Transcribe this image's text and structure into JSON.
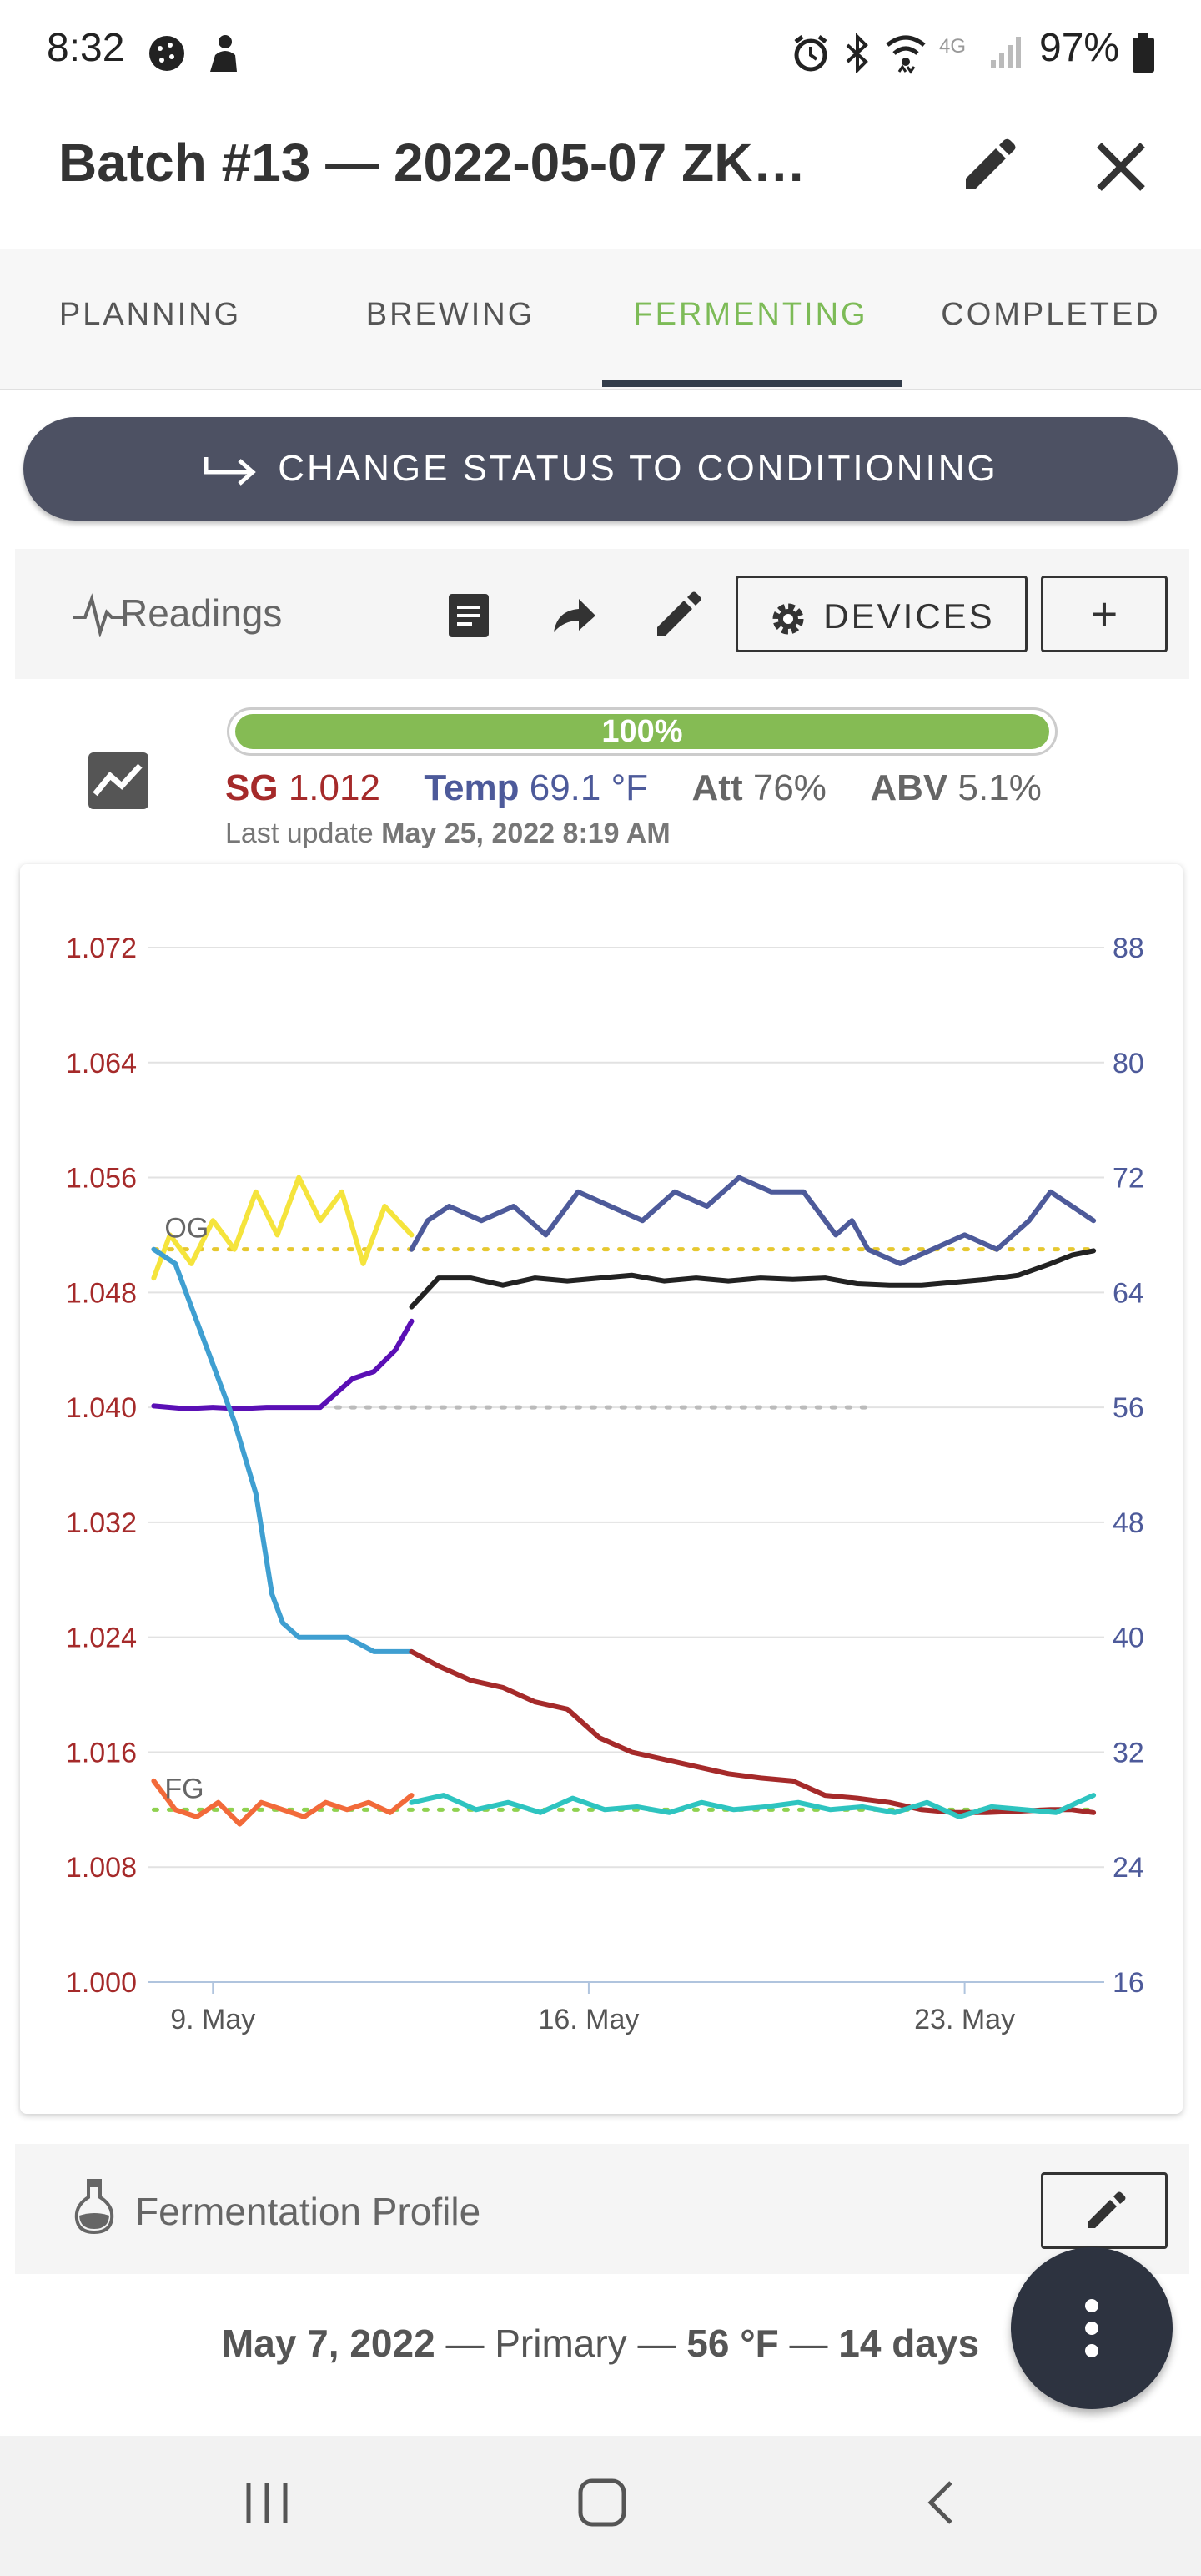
{
  "status_bar": {
    "time": "8:32",
    "battery": "97%",
    "network": "4G"
  },
  "header": {
    "title": "Batch #13 — 2022-05-07 ZK…",
    "edit_icon": "pencil-icon",
    "close_icon": "close-icon"
  },
  "tabs": [
    {
      "label": "PLANNING",
      "active": false
    },
    {
      "label": "BREWING",
      "active": false
    },
    {
      "label": "FERMENTING",
      "active": true
    },
    {
      "label": "COMPLETED",
      "active": false
    }
  ],
  "status_button": {
    "label": "CHANGE STATUS TO CONDITIONING",
    "icon": "arrow-right-icon"
  },
  "readings": {
    "label": "Readings",
    "devices_label": "DEVICES",
    "add_label": "+"
  },
  "progress": {
    "percent": 100,
    "label": "100%"
  },
  "stats": {
    "sg_label": "SG",
    "sg_value": "1.012",
    "temp_label": "Temp",
    "temp_value": "69.1 °F",
    "att_label": "Att",
    "att_value": "76%",
    "abv_label": "ABV",
    "abv_value": "5.1%",
    "last_update_label": "Last update",
    "last_update_value": "May 25, 2022 8:19 AM"
  },
  "colors": {
    "accent_green": "#7dbb57",
    "sg_red": "#a52a2a",
    "temp_blue": "#4d5a9a",
    "button_dark": "#4d5163"
  },
  "chart_data": {
    "type": "line",
    "x_ticks": [
      "9. May",
      "16. May",
      "23. May"
    ],
    "y_left_ticks": [
      "1.072",
      "1.064",
      "1.056",
      "1.048",
      "1.040",
      "1.032",
      "1.024",
      "1.016",
      "1.008",
      "1.000"
    ],
    "y_right_ticks": [
      "88",
      "80",
      "72",
      "64",
      "56",
      "48",
      "40",
      "32",
      "24",
      "16"
    ],
    "y_left_range": [
      1.0,
      1.072
    ],
    "y_right_range": [
      16,
      88
    ],
    "x_range": [
      7.8,
      25.6
    ],
    "annotations": [
      {
        "label": "OG",
        "value": 1.051
      },
      {
        "label": "FG",
        "value": 1.012
      }
    ],
    "series": [
      {
        "color": "#f5e43c",
        "axis": "right",
        "x": [
          7.9,
          8.2,
          8.6,
          9.0,
          9.4,
          9.8,
          10.2,
          10.6,
          11.0,
          11.4,
          11.8,
          12.2,
          12.7
        ],
        "values": [
          65,
          68,
          66,
          69,
          67,
          71,
          68,
          72,
          69,
          71,
          66,
          70,
          68
        ]
      },
      {
        "color": "#4d5a9a",
        "axis": "right",
        "x": [
          12.7,
          13.0,
          13.4,
          14.0,
          14.6,
          15.2,
          15.8,
          16.4,
          17.0,
          17.6,
          18.2,
          18.8,
          19.4,
          20.0,
          20.6,
          20.9,
          21.2,
          21.8,
          22.4,
          23.0,
          23.6,
          24.2,
          24.6,
          25.0,
          25.4
        ],
        "values": [
          67,
          69,
          70,
          69,
          70,
          68,
          71,
          70,
          69,
          71,
          70,
          72,
          71,
          71,
          68,
          69,
          67,
          66,
          67,
          68,
          67,
          69,
          71,
          70,
          69
        ]
      },
      {
        "color": "#5a0fb5",
        "axis": "right",
        "x": [
          7.9,
          8.5,
          9.0,
          9.5,
          10.0,
          10.5,
          11.0,
          11.3,
          11.6,
          12.0,
          12.4,
          12.7
        ],
        "values": [
          56.1,
          55.9,
          56.0,
          55.9,
          56.0,
          56.0,
          56.0,
          57.0,
          58.0,
          58.5,
          60.0,
          62.0
        ]
      },
      {
        "color": "#222222",
        "axis": "right",
        "x": [
          12.7,
          13.2,
          13.8,
          14.4,
          15.0,
          15.6,
          16.2,
          16.8,
          17.4,
          18.0,
          18.6,
          19.2,
          19.8,
          20.4,
          21.0,
          21.6,
          22.2,
          22.8,
          23.4,
          24.0,
          24.6,
          25.0,
          25.4
        ],
        "values": [
          63,
          65,
          65,
          64.5,
          65,
          64.8,
          65,
          65.2,
          64.8,
          65,
          64.8,
          65,
          64.9,
          65,
          64.6,
          64.5,
          64.5,
          64.7,
          64.9,
          65.2,
          66,
          66.6,
          66.9
        ]
      },
      {
        "color": "#3f9fd1",
        "axis": "left",
        "x": [
          7.9,
          8.3,
          8.6,
          9.0,
          9.4,
          9.8,
          10.1,
          10.3,
          10.6,
          11.0,
          11.5,
          12.0,
          12.7
        ],
        "values": [
          1.051,
          1.05,
          1.047,
          1.043,
          1.039,
          1.034,
          1.027,
          1.025,
          1.024,
          1.024,
          1.024,
          1.023,
          1.023
        ]
      },
      {
        "color": "#a52a2a",
        "axis": "left",
        "x": [
          12.7,
          13.2,
          13.8,
          14.4,
          15.0,
          15.6,
          16.2,
          16.8,
          17.4,
          18.0,
          18.6,
          19.2,
          19.8,
          20.4,
          21.0,
          21.6,
          22.2,
          22.8,
          23.4,
          24.0,
          24.6,
          25.0,
          25.4
        ],
        "values": [
          1.023,
          1.022,
          1.021,
          1.0205,
          1.0195,
          1.019,
          1.017,
          1.016,
          1.0155,
          1.015,
          1.0145,
          1.0142,
          1.014,
          1.013,
          1.0128,
          1.0125,
          1.012,
          1.0118,
          1.0118,
          1.0119,
          1.012,
          1.012,
          1.0118
        ]
      },
      {
        "color": "#f26a3a",
        "axis": "left",
        "x": [
          7.9,
          8.3,
          8.7,
          9.1,
          9.5,
          9.9,
          10.3,
          10.7,
          11.1,
          11.5,
          11.9,
          12.3,
          12.7
        ],
        "values": [
          1.014,
          1.012,
          1.0115,
          1.0125,
          1.011,
          1.0125,
          1.012,
          1.0115,
          1.0125,
          1.012,
          1.0125,
          1.0118,
          1.013
        ]
      },
      {
        "color": "#2ec4c0",
        "axis": "left",
        "x": [
          12.7,
          13.3,
          13.9,
          14.5,
          15.1,
          15.7,
          16.3,
          16.9,
          17.5,
          18.1,
          18.7,
          19.3,
          19.9,
          20.5,
          21.1,
          21.7,
          22.3,
          22.9,
          23.5,
          24.1,
          24.7,
          25.1,
          25.4
        ],
        "values": [
          1.0125,
          1.013,
          1.012,
          1.0125,
          1.0118,
          1.0128,
          1.012,
          1.0122,
          1.0118,
          1.0125,
          1.012,
          1.0122,
          1.0125,
          1.012,
          1.0122,
          1.0118,
          1.0125,
          1.0115,
          1.0122,
          1.012,
          1.0118,
          1.0125,
          1.013
        ]
      }
    ],
    "reference_lines": [
      {
        "color": "#e6c830",
        "axis": "left",
        "value": 1.051,
        "x_from": 7.9,
        "x_to": 25.4
      },
      {
        "color": "#8fd14f",
        "axis": "left",
        "value": 1.012,
        "x_from": 7.9,
        "x_to": 25.4
      },
      {
        "color": "#bbbbbb",
        "axis": "right",
        "value": 56,
        "x_from": 11.3,
        "x_to": 21.2
      }
    ],
    "grid": true
  },
  "fermentation_profile": {
    "label": "Fermentation Profile",
    "date": "May 7, 2022",
    "stage": "Primary",
    "temp": "56 °F",
    "duration": "14 days"
  }
}
